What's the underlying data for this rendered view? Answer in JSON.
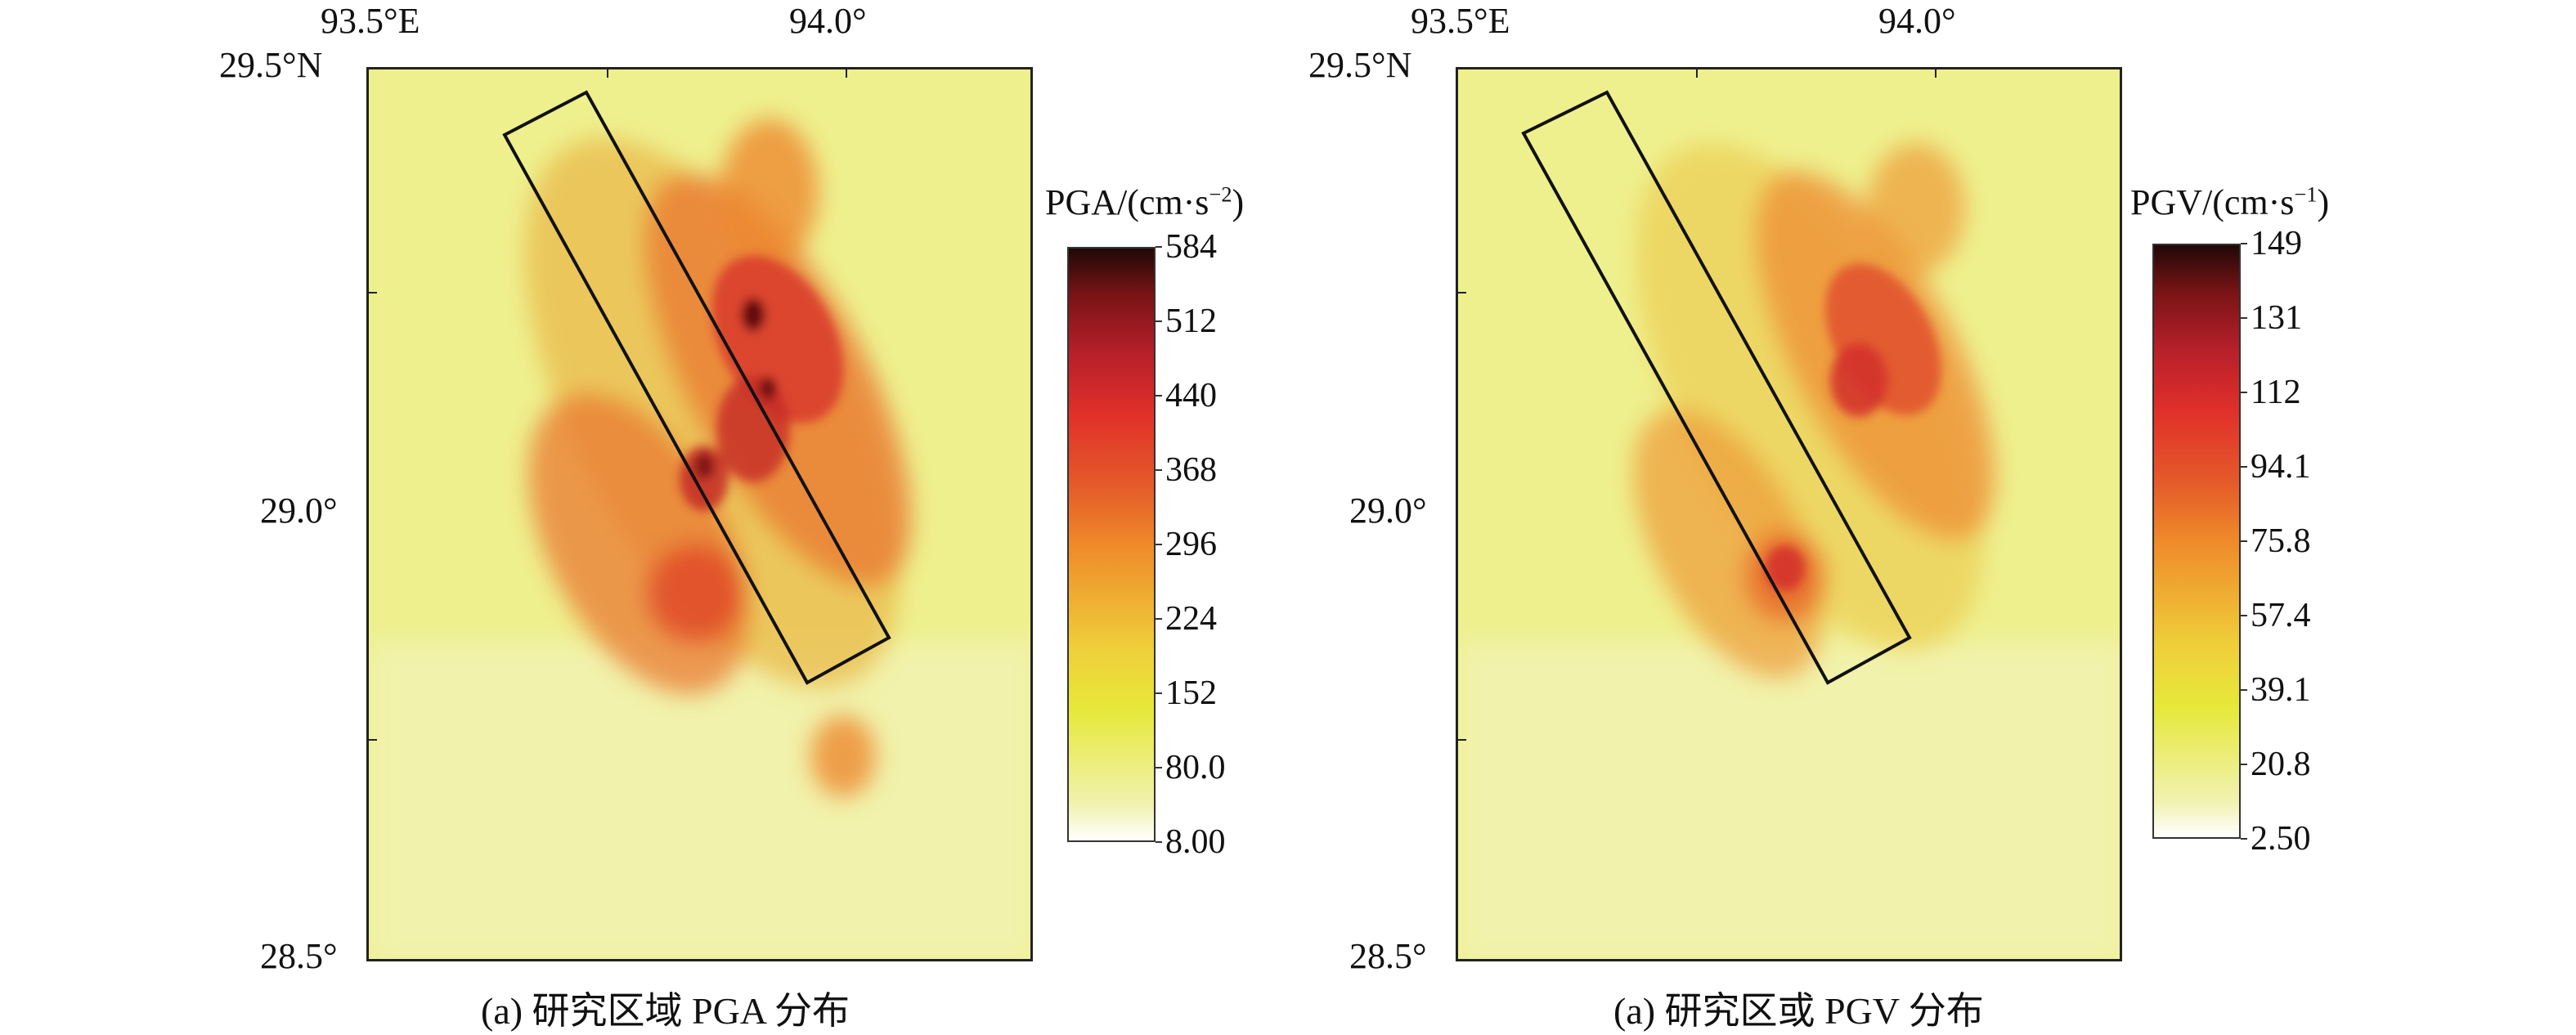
{
  "panels": [
    {
      "id": "pga",
      "caption": "(a) 研究区域 PGA 分布",
      "cbar_title_prefix": "PGA/(cm·s",
      "cbar_title_sup": "−2",
      "cbar_title_suffix": ")",
      "cbar_ticks": [
        "584",
        "512",
        "440",
        "368",
        "296",
        "224",
        "152",
        "80.0",
        "8.00"
      ],
      "x_ticks": [
        "93.5°E",
        "94.0°"
      ],
      "y_ticks": [
        "29.5°N",
        "29.0°",
        "28.5°"
      ]
    },
    {
      "id": "pgv",
      "caption": "(a) 研究区或 PGV 分布",
      "cbar_title_prefix": "PGV/(cm·s",
      "cbar_title_sup": "−1",
      "cbar_title_suffix": ")",
      "cbar_ticks": [
        "149",
        "131",
        "112",
        "94.1",
        "75.8",
        "57.4",
        "39.1",
        "20.8",
        "2.50"
      ],
      "x_ticks": [
        "93.5°E",
        "94.0°"
      ],
      "y_ticks": [
        "29.5°N",
        "29.0°",
        "28.5°"
      ]
    }
  ],
  "colors": {
    "low": "#ffffff",
    "yellow": "#e6e83a",
    "orange": "#ef8a2a",
    "red": "#e0302a",
    "darkred": "#8a1416",
    "black": "#200808"
  }
}
